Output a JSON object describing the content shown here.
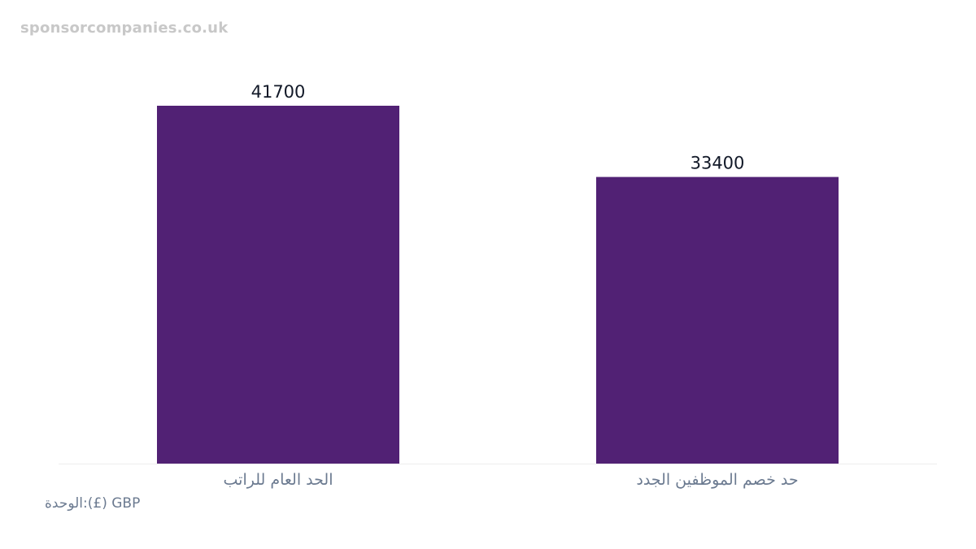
{
  "watermark": "sponsorcompanies.co.uk",
  "unit_note": "الوحدة:(£) GBP",
  "colors": {
    "bar": "#512174",
    "value_label": "#111827",
    "category_label": "#6b7a90",
    "baseline": "#eeeeee"
  },
  "chart_data": {
    "type": "bar",
    "categories": [
      "الحد العام للراتب",
      "حد خصم الموظفين الجدد"
    ],
    "values": [
      41700,
      33400
    ],
    "value_labels": [
      "41700",
      "33400"
    ],
    "ylim": [
      0,
      41700
    ]
  }
}
